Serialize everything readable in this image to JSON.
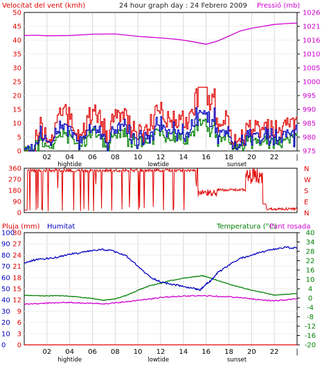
{
  "header": {
    "wind_label": "Velocitat del vent (kmh)",
    "title": "24 hour graph day : 24 Febrero 2009",
    "pressure_label": "Pressió (mb)"
  },
  "colors": {
    "wind": "#e00000",
    "wind_gust": "#0000c0",
    "wind_avg": "#008000",
    "pressure": "#d000d0",
    "direction": "#e00000",
    "humidity": "#0000c0",
    "temperature": "#008000",
    "dewpoint": "#d000d0",
    "rain": "#e00000"
  },
  "x_axis": {
    "tick_labels": [
      "02",
      "04",
      "06",
      "08",
      "10",
      "12",
      "14",
      "16",
      "18",
      "20",
      "22",
      "|"
    ],
    "event_labels_top": [
      {
        "hour": 4,
        "text": "hightide"
      },
      {
        "hour": 11.8,
        "text": "lowtide"
      },
      {
        "hour": 18.7,
        "text": "sunset"
      }
    ],
    "event_labels_bottom": [
      {
        "hour": 4,
        "text": "hightide"
      },
      {
        "hour": 11.8,
        "text": "lowtide"
      },
      {
        "hour": 18.7,
        "text": "sunset"
      }
    ]
  },
  "chart_data": [
    {
      "type": "line",
      "name": "wind-pressure",
      "left_axis_label": "Velocitat del vent (kmh)",
      "right_axis_label": "Pressió (mb)",
      "left_ticks": [
        "0",
        "5",
        "10",
        "15",
        "20",
        "25",
        "30",
        "35",
        "40",
        "45",
        "50"
      ],
      "right_ticks": [
        "975",
        "980",
        "985",
        "990",
        "995",
        "1000",
        "1005",
        "1010",
        "1016",
        "1021",
        "1026"
      ],
      "ylim_left": [
        0,
        50
      ],
      "ylim_right": [
        975,
        1026
      ],
      "xlim_hours": [
        0,
        24
      ],
      "pressure": {
        "hours": [
          0,
          1,
          2,
          4,
          6,
          8,
          10,
          11,
          12,
          13,
          14,
          15,
          16,
          17,
          18,
          19,
          20,
          21,
          22,
          23,
          24
        ],
        "values": [
          1017.5,
          1017.6,
          1017.4,
          1017.5,
          1018.0,
          1018.1,
          1017.2,
          1016.9,
          1016.6,
          1016.3,
          1015.8,
          1015.1,
          1014.3,
          1015.5,
          1017.3,
          1019.2,
          1020.2,
          1020.9,
          1021.6,
          1021.9,
          1022.1
        ]
      }
    },
    {
      "type": "line",
      "name": "wind-direction",
      "left_ticks": [
        "360",
        "270",
        "180",
        "90",
        "0"
      ],
      "right_ticks": [
        "N",
        "W",
        "S",
        "E",
        "N"
      ],
      "ylim": [
        0,
        360
      ],
      "xlim_hours": [
        0,
        24
      ]
    },
    {
      "type": "line",
      "name": "rain-humidity-temperature",
      "rain_label": "Pluja (mm)",
      "humidity_label": "Humitat",
      "temperature_label": "Temperatura (°C)",
      "dewpoint_label": "Punt rosada",
      "left_ticks": [
        "0",
        "10",
        "20",
        "30",
        "40",
        "50",
        "60",
        "70",
        "80",
        "90",
        "100"
      ],
      "rain_ticks": [
        "0",
        "3",
        "6",
        "9",
        "12",
        "15",
        "18",
        "21",
        "24",
        "27",
        "30"
      ],
      "right_ticks": [
        "-20",
        "-16",
        "-12",
        "-8",
        "-4",
        "0",
        "4",
        "10",
        "16",
        "22",
        "28",
        "34",
        "40"
      ],
      "ylim_humidity": [
        0,
        100
      ],
      "ylim_temperature": [
        -20,
        40
      ],
      "xlim_hours": [
        0,
        24
      ],
      "humidity": {
        "hours": [
          0,
          1,
          2,
          3,
          4,
          5,
          6,
          7,
          8,
          9,
          10,
          11,
          12,
          13,
          14,
          15,
          15.5,
          16,
          16.5,
          17,
          18,
          19,
          20,
          21,
          22,
          23,
          24
        ],
        "values": [
          73,
          76,
          77,
          78,
          81,
          82,
          84,
          85,
          83,
          79,
          70,
          61,
          56,
          54,
          52,
          50,
          49,
          54,
          58,
          64,
          71,
          77,
          80,
          83,
          85,
          87,
          86
        ]
      },
      "temperature": {
        "hours": [
          0,
          1,
          2,
          3,
          4,
          5,
          6,
          7,
          8,
          9,
          10,
          11,
          12,
          13,
          14,
          15,
          15.7,
          16,
          17,
          18,
          19,
          20,
          21,
          22,
          23,
          24
        ],
        "values": [
          6.5,
          6.4,
          6.2,
          6.3,
          6.0,
          5.4,
          4.8,
          3.8,
          4.6,
          6.5,
          9.2,
          11.5,
          13.0,
          14.5,
          15.6,
          16.5,
          17.0,
          16.4,
          14.5,
          12.5,
          10.8,
          9.2,
          8.0,
          6.6,
          7.0,
          7.5
        ]
      },
      "dewpoint": {
        "hours": [
          0,
          1,
          2,
          3,
          4,
          5,
          6,
          7,
          8,
          9,
          10,
          11,
          12,
          13,
          14,
          15,
          16,
          17,
          18,
          19,
          20,
          21,
          22,
          23,
          24
        ],
        "values": [
          1.8,
          2.0,
          2.3,
          2.6,
          2.7,
          2.4,
          2.1,
          2.0,
          2.5,
          3.1,
          3.8,
          4.5,
          5.3,
          5.8,
          6.1,
          6.2,
          6.3,
          6.0,
          5.7,
          5.2,
          4.6,
          4.0,
          3.5,
          4.0,
          4.7
        ]
      },
      "rain": {
        "hours": [
          0,
          24
        ],
        "values": [
          0,
          0
        ]
      }
    }
  ]
}
